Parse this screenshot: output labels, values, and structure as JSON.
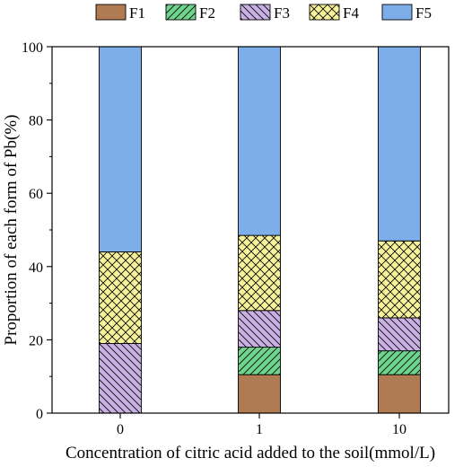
{
  "chart_data": {
    "type": "bar",
    "stacked": true,
    "categories": [
      "0",
      "1",
      "10"
    ],
    "series": [
      {
        "name": "F1",
        "values": [
          0,
          10.5,
          10.5
        ],
        "color": "#b07a52",
        "pattern": "solid"
      },
      {
        "name": "F2",
        "values": [
          0,
          7.5,
          6.5
        ],
        "color": "#6fd48e",
        "pattern": "diagonal-forward"
      },
      {
        "name": "F3",
        "values": [
          19,
          10,
          9
        ],
        "color": "#c9b0e3",
        "pattern": "diagonal-back"
      },
      {
        "name": "F4",
        "values": [
          25,
          20.5,
          21
        ],
        "color": "#f6f29a",
        "pattern": "crosshatch"
      },
      {
        "name": "F5",
        "values": [
          56,
          51.5,
          53
        ],
        "color": "#7eaeea",
        "pattern": "solid"
      }
    ],
    "title": "",
    "xlabel": "Concentration of citric acid added to the soil(mmol/L)",
    "ylabel": "Proportion of each form of Pb(%)",
    "ylim": [
      0,
      100
    ],
    "yticks": [
      0,
      20,
      40,
      60,
      80,
      100
    ],
    "grid": false,
    "legend_position": "top"
  }
}
